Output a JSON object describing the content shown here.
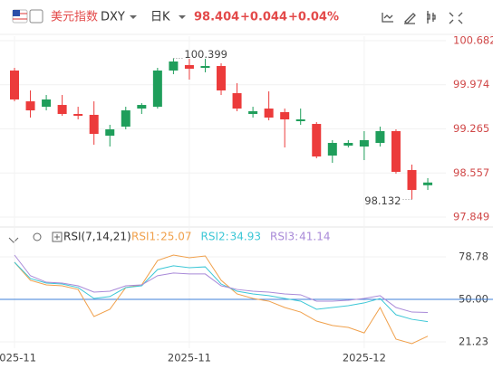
{
  "chart_data": {
    "type": "candlestick",
    "title": "美元指数",
    "symbol": "DXY",
    "period": "日K",
    "last_price": "98.404",
    "change": "+0.044",
    "change_pct": "+0.04%",
    "up_color": "#1f9e5b",
    "down_color": "#ec3b3b",
    "categories": [
      "2025-11",
      null,
      null,
      null,
      null,
      null,
      null,
      null,
      null,
      null,
      null,
      "2025-11",
      null,
      null,
      null,
      null,
      null,
      null,
      null,
      null,
      null,
      null,
      "2025-12",
      null,
      null,
      null,
      null
    ],
    "open": [
      100.203,
      99.708,
      99.621,
      99.65,
      99.505,
      99.491,
      99.156,
      99.302,
      99.592,
      99.621,
      100.203,
      100.29,
      100.246,
      100.275,
      99.839,
      99.505,
      99.592,
      99.534,
      99.389,
      99.345,
      98.837,
      98.997,
      98.982,
      99.04,
      99.229,
      98.604,
      98.36
    ],
    "high": [
      100.246,
      99.883,
      99.81,
      99.81,
      99.621,
      99.708,
      99.331,
      99.621,
      99.679,
      100.246,
      100.399,
      100.391,
      100.391,
      100.319,
      99.999,
      99.621,
      99.868,
      99.592,
      99.592,
      99.374,
      99.084,
      99.084,
      99.229,
      99.302,
      99.258,
      98.691,
      98.474
    ],
    "low": [
      99.708,
      99.447,
      99.563,
      99.476,
      99.418,
      99.011,
      98.982,
      99.258,
      99.505,
      99.592,
      100.144,
      100.057,
      100.174,
      99.81,
      99.549,
      99.447,
      99.403,
      98.967,
      99.331,
      98.793,
      98.72,
      98.967,
      98.764,
      98.982,
      98.546,
      98.132,
      98.285
    ],
    "close": [
      99.738,
      99.563,
      99.738,
      99.505,
      99.476,
      99.185,
      99.258,
      99.563,
      99.65,
      100.203,
      100.348,
      100.232,
      100.275,
      99.883,
      99.592,
      99.549,
      99.447,
      99.418,
      99.418,
      98.822,
      99.04,
      99.04,
      99.084,
      99.229,
      98.575,
      98.285,
      98.404
    ],
    "ylim": [
      97.849,
      100.682
    ],
    "yticks": [
      {
        "value": 100.682,
        "label": "100.682"
      },
      {
        "value": 99.974,
        "label": "99.974"
      },
      {
        "value": 99.265,
        "label": "99.265"
      },
      {
        "value": 98.557,
        "label": "98.557"
      },
      {
        "value": 97.849,
        "label": "97.849"
      }
    ],
    "annotations": [
      {
        "text": "100.399",
        "index": 10,
        "value": 100.399
      },
      {
        "text": "98.132",
        "index": 25,
        "value": 98.132
      }
    ],
    "grid": true,
    "indicator": {
      "type": "line",
      "title": "RSI(7,14,21)",
      "ylim": [
        21.23,
        78.78
      ],
      "yticks": [
        78.78,
        {
          "value": 50,
          "label": "50.00"
        },
        21.23
      ],
      "reference_line": 50,
      "reference_color": "#3d7fd9",
      "series": [
        {
          "name": "RSI1",
          "value_label": "25.07",
          "color": "#f0a04b",
          "values": [
            75.1,
            62.9,
            59.8,
            59.2,
            56.7,
            38.4,
            43.3,
            58,
            59.8,
            76.3,
            80,
            78.2,
            79.4,
            62.9,
            53.7,
            50.6,
            48.8,
            44.5,
            41.4,
            35.3,
            32.3,
            31,
            27.3,
            44.5,
            23.1,
            20,
            25.07
          ]
        },
        {
          "name": "RSI2",
          "value_label": "34.93",
          "color": "#3cc7d6",
          "values": [
            75.1,
            64.1,
            61,
            60.4,
            58,
            50.6,
            51.9,
            58,
            59.2,
            70.2,
            72.7,
            71.4,
            72,
            60.4,
            55.5,
            53.7,
            52.5,
            50.6,
            48.8,
            43.3,
            44.5,
            45.7,
            47.6,
            50.6,
            39.6,
            36.5,
            34.93
          ]
        },
        {
          "name": "RSI3",
          "value_label": "41.14",
          "color": "#a98ad8",
          "values": [
            80,
            66,
            61.6,
            61,
            59.2,
            54.9,
            55.5,
            59.2,
            59.8,
            66,
            67.8,
            67.2,
            67.2,
            59.2,
            56.7,
            55.5,
            54.9,
            53.7,
            53.1,
            48.8,
            48.8,
            49.4,
            50.6,
            52.5,
            44.5,
            41.4,
            41.14
          ]
        }
      ]
    }
  }
}
